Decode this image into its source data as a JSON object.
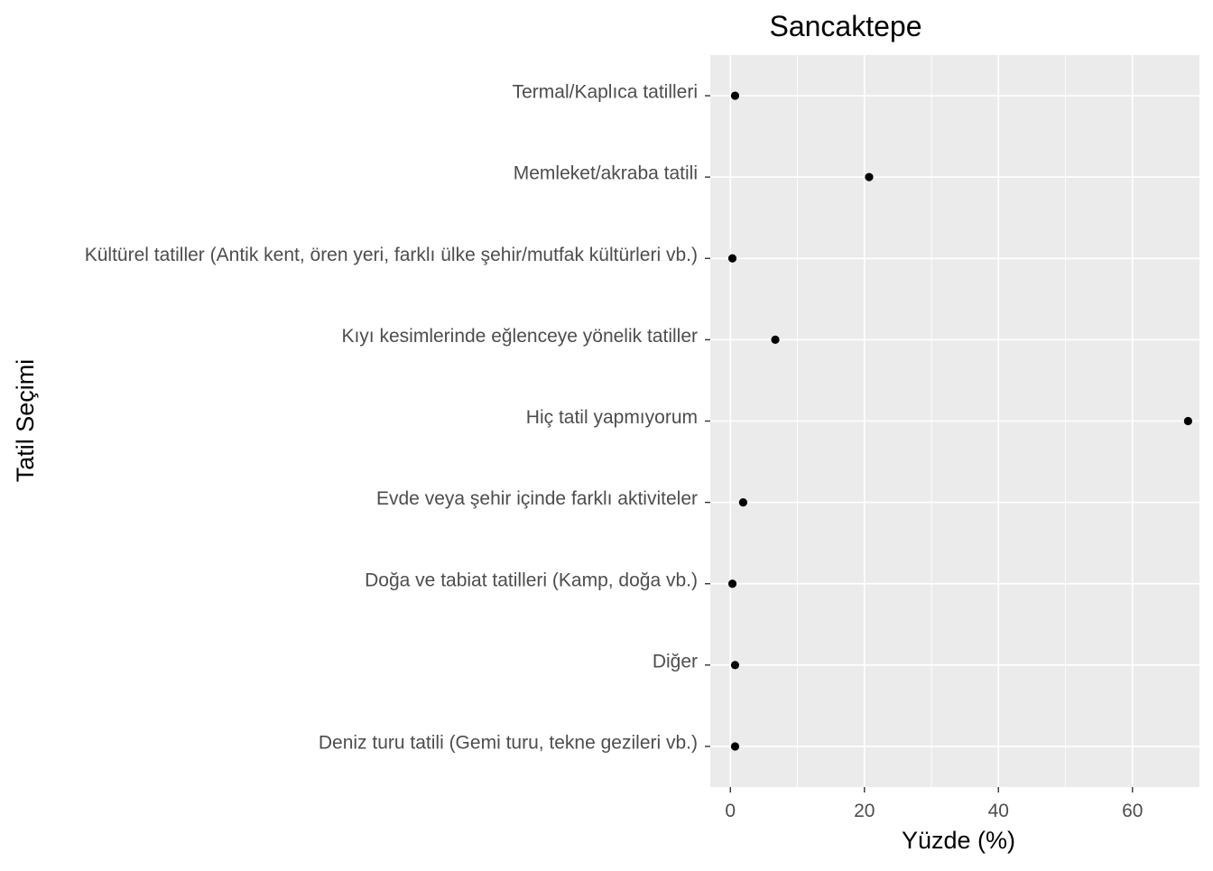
{
  "chart_data": {
    "type": "scatter",
    "title": "Sancaktepe",
    "xlabel": "Yüzde (%)",
    "ylabel": "Tatil Seçimi",
    "xlim": [
      -3,
      70
    ],
    "x_ticks": [
      0,
      20,
      40,
      60
    ],
    "grid": true,
    "legend": "none",
    "point_color": "#000000",
    "panel_color": "#ebebeb",
    "categories": [
      "Termal/Kaplıca tatilleri",
      "Memleket/akraba tatili",
      "Kültürel tatiller (Antik kent, ören yeri, farklı ülke şehir/mutfak kültürleri vb.)",
      "Kıyı kesimlerinde eğlenceye yönelik tatiller",
      "Hiç tatil yapmıyorum",
      "Evde veya şehir içinde farklı aktiviteler",
      "Doğa ve tabiat tatilleri (Kamp, doğa vb.)",
      "Diğer",
      "Deniz turu tatili (Gemi turu, tekne gezileri vb.)"
    ],
    "values": [
      0.7,
      20.7,
      0.3,
      6.7,
      68.3,
      1.9,
      0.3,
      0.7,
      0.7
    ]
  }
}
